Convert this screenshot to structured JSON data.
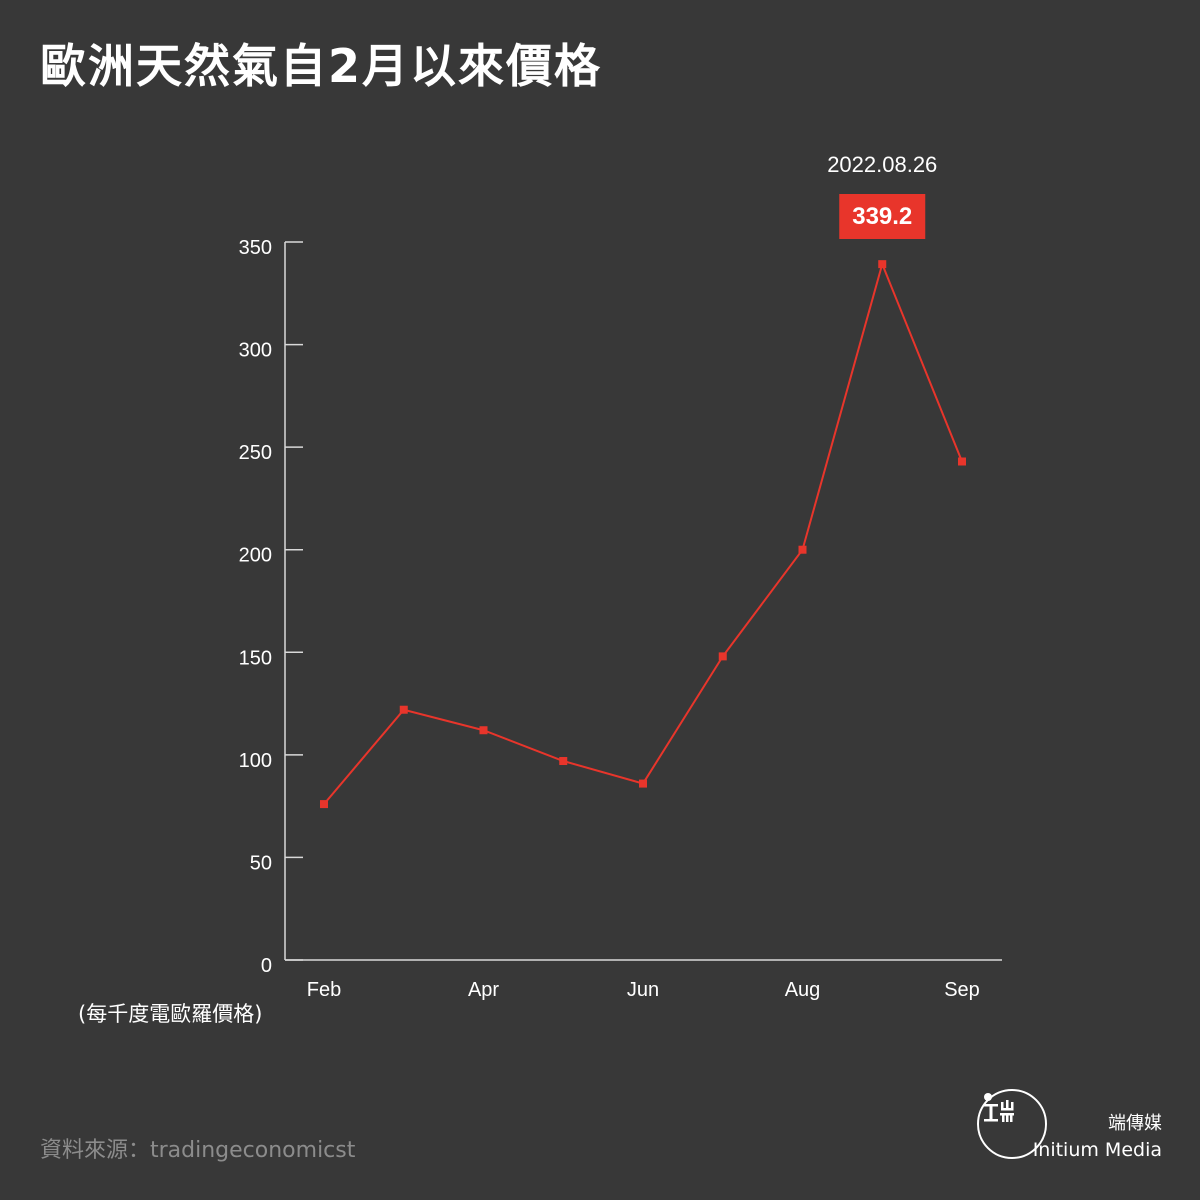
{
  "title": "歐洲天然氣自2月以來價格",
  "unit_label": "(每千度電歐羅價格)",
  "source": "資料來源：tradingeconomicst",
  "brand": {
    "name_zh": "端傳媒",
    "name_en": "Initium Media"
  },
  "colors": {
    "background": "#383838",
    "line": "#e8352b",
    "axis": "#d9d9d9",
    "text": "#ffffff",
    "source_text": "#8c8c8c"
  },
  "chart_data": {
    "type": "line",
    "x_tick_labels": [
      "Feb",
      "Apr",
      "Jun",
      "Aug",
      "Sep"
    ],
    "y_ticks": [
      0,
      50,
      100,
      150,
      200,
      250,
      300,
      350
    ],
    "ylim": [
      0,
      350
    ],
    "series": [
      {
        "points": [
          {
            "x": "Feb",
            "y": 76
          },
          {
            "x": "",
            "y": 122
          },
          {
            "x": "Apr",
            "y": 112
          },
          {
            "x": "",
            "y": 97
          },
          {
            "x": "Jun",
            "y": 86
          },
          {
            "x": "",
            "y": 148
          },
          {
            "x": "Aug",
            "y": 200
          },
          {
            "x": "2022.08.26",
            "y": 339.2
          },
          {
            "x": "Sep",
            "y": 243
          }
        ]
      }
    ],
    "annotation": {
      "date": "2022.08.26",
      "value": "339.2",
      "point_index": 7
    },
    "grid": false,
    "legend": "none"
  }
}
